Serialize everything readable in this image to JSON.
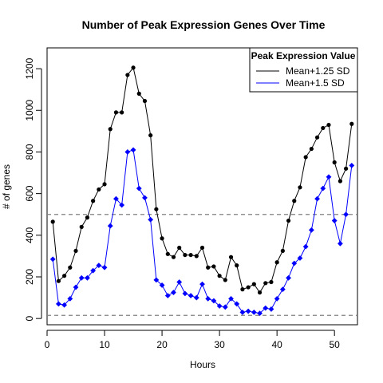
{
  "chart_data": {
    "type": "line",
    "title": "Number of Peak Expression Genes Over Time",
    "xlabel": "Hours",
    "ylabel": "# of genes",
    "xlim": [
      0,
      54
    ],
    "ylim": [
      -30,
      1300
    ],
    "xticks": [
      0,
      10,
      20,
      30,
      40,
      50
    ],
    "yticks": [
      0,
      200,
      400,
      600,
      800,
      1000,
      1200
    ],
    "grid": false,
    "legend": {
      "title": "Peak Expression Value",
      "placement": "top-right"
    },
    "reference_lines": [
      {
        "axis": "y",
        "value": 500,
        "style": "dashed",
        "color": "#808080"
      },
      {
        "axis": "y",
        "value": 15,
        "style": "dashed",
        "color": "#808080"
      }
    ],
    "x": [
      1,
      2,
      3,
      4,
      5,
      6,
      7,
      8,
      9,
      10,
      11,
      12,
      13,
      14,
      15,
      16,
      17,
      18,
      19,
      20,
      21,
      22,
      23,
      24,
      25,
      26,
      27,
      28,
      29,
      30,
      31,
      32,
      33,
      34,
      35,
      36,
      37,
      38,
      39,
      40,
      41,
      42,
      43,
      44,
      45,
      46,
      47,
      48,
      49,
      50,
      51,
      52,
      53
    ],
    "series": [
      {
        "name": "Mean+1.25 SD",
        "color": "#000000",
        "marker": "circle",
        "values": [
          465,
          180,
          205,
          245,
          325,
          440,
          485,
          565,
          620,
          645,
          910,
          990,
          990,
          1170,
          1205,
          1080,
          1045,
          880,
          525,
          385,
          310,
          295,
          340,
          305,
          305,
          300,
          340,
          245,
          250,
          205,
          185,
          295,
          255,
          140,
          150,
          165,
          125,
          170,
          175,
          270,
          325,
          470,
          565,
          630,
          775,
          815,
          870,
          915,
          930,
          750,
          660,
          720,
          935
        ]
      },
      {
        "name": "Mean+1.5 SD",
        "color": "#0000ff",
        "marker": "diamond",
        "values": [
          285,
          70,
          65,
          95,
          150,
          195,
          195,
          230,
          255,
          245,
          445,
          575,
          545,
          800,
          810,
          625,
          580,
          475,
          185,
          160,
          110,
          125,
          175,
          120,
          110,
          100,
          165,
          95,
          85,
          60,
          55,
          95,
          70,
          30,
          35,
          30,
          25,
          50,
          45,
          95,
          140,
          195,
          265,
          290,
          345,
          425,
          575,
          625,
          680,
          470,
          360,
          500,
          735
        ]
      }
    ]
  }
}
